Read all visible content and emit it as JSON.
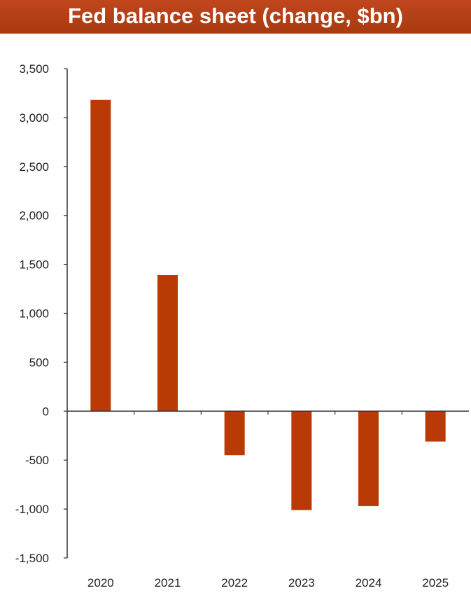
{
  "chart_data": {
    "type": "bar",
    "title": "Fed balance sheet (change, $bn)",
    "categories": [
      "2020",
      "2021",
      "2022",
      "2023",
      "2024",
      "2025"
    ],
    "series": [
      {
        "values": [
          3180,
          1390,
          -450,
          -1010,
          -970,
          -310
        ]
      }
    ],
    "ylim": [
      -1500,
      3500
    ],
    "yticks": [
      3500,
      3000,
      2500,
      2000,
      1500,
      1000,
      500,
      0,
      -500,
      -1000,
      -1500
    ],
    "ytick_labels": [
      "3,500",
      "3,000",
      "2,500",
      "2,000",
      "1,500",
      "1,000",
      "500",
      "0",
      "-500",
      "-1,000",
      "-1,500"
    ],
    "grid": false,
    "legend": "none",
    "bar_color": "#b93a05",
    "title_bg_color": "#b03e14"
  }
}
